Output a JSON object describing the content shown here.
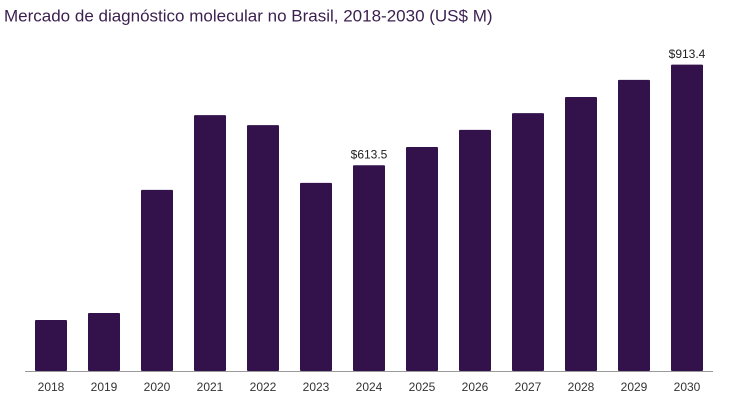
{
  "chart_data": {
    "type": "bar",
    "title": "Mercado de diagnóstico molecular no Brasil, 2018-2030 (US$ M)",
    "categories": [
      "2018",
      "2019",
      "2020",
      "2021",
      "2022",
      "2023",
      "2024",
      "2025",
      "2026",
      "2027",
      "2028",
      "2029",
      "2030"
    ],
    "values": [
      152,
      173,
      540,
      763,
      733,
      561,
      613.5,
      668,
      719,
      769,
      817,
      868,
      913.4
    ],
    "value_labels": [
      null,
      null,
      null,
      null,
      null,
      null,
      "$613.5",
      null,
      null,
      null,
      null,
      null,
      "$913.4"
    ],
    "color": "#33114a",
    "ylim": [
      0,
      1000
    ]
  }
}
